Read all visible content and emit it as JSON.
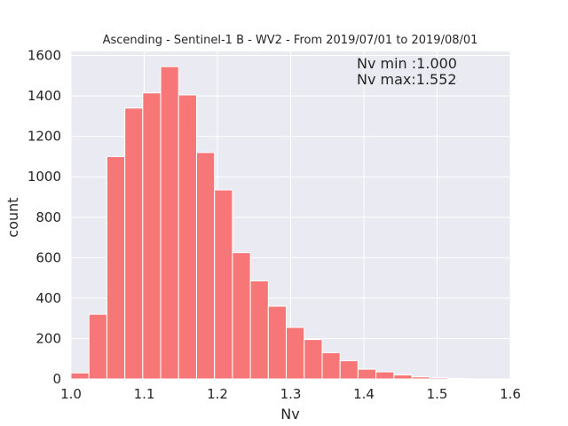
{
  "chart_data": {
    "type": "bar",
    "title": "Ascending - Sentinel-1 B - WV2 - From 2019/07/01 to 2019/08/01",
    "xlabel": "Nv",
    "ylabel": "count",
    "xlim": [
      1.0,
      1.6
    ],
    "ylim": [
      0,
      1620
    ],
    "xticks": [
      1.0,
      1.1,
      1.2,
      1.3,
      1.4,
      1.5,
      1.6
    ],
    "xtick_labels": [
      "1.0",
      "1.1",
      "1.2",
      "1.3",
      "1.4",
      "1.5",
      "1.6"
    ],
    "yticks": [
      0,
      200,
      400,
      600,
      800,
      1000,
      1200,
      1400,
      1600
    ],
    "ytick_labels": [
      "0",
      "200",
      "400",
      "600",
      "800",
      "1000",
      "1200",
      "1400",
      "1600"
    ],
    "grid": true,
    "bar_color": "#f77779",
    "background_color": "#eaeaf2",
    "bins": [
      {
        "x0": 1.0,
        "x1": 1.0245,
        "count": 30
      },
      {
        "x0": 1.0245,
        "x1": 1.049,
        "count": 320
      },
      {
        "x0": 1.049,
        "x1": 1.0735,
        "count": 1100
      },
      {
        "x0": 1.0735,
        "x1": 1.098,
        "count": 1340
      },
      {
        "x0": 1.098,
        "x1": 1.1225,
        "count": 1415
      },
      {
        "x0": 1.1225,
        "x1": 1.147,
        "count": 1545
      },
      {
        "x0": 1.147,
        "x1": 1.1715,
        "count": 1405
      },
      {
        "x0": 1.1715,
        "x1": 1.196,
        "count": 1120
      },
      {
        "x0": 1.196,
        "x1": 1.2205,
        "count": 935
      },
      {
        "x0": 1.2205,
        "x1": 1.245,
        "count": 625
      },
      {
        "x0": 1.245,
        "x1": 1.2695,
        "count": 485
      },
      {
        "x0": 1.2695,
        "x1": 1.294,
        "count": 360
      },
      {
        "x0": 1.294,
        "x1": 1.3185,
        "count": 255
      },
      {
        "x0": 1.3185,
        "x1": 1.343,
        "count": 195
      },
      {
        "x0": 1.343,
        "x1": 1.3675,
        "count": 130
      },
      {
        "x0": 1.3675,
        "x1": 1.392,
        "count": 90
      },
      {
        "x0": 1.392,
        "x1": 1.4165,
        "count": 48
      },
      {
        "x0": 1.4165,
        "x1": 1.441,
        "count": 35
      },
      {
        "x0": 1.441,
        "x1": 1.4655,
        "count": 20
      },
      {
        "x0": 1.4655,
        "x1": 1.49,
        "count": 10
      },
      {
        "x0": 1.49,
        "x1": 1.5145,
        "count": 6
      },
      {
        "x0": 1.5145,
        "x1": 1.539,
        "count": 3
      },
      {
        "x0": 1.539,
        "x1": 1.552,
        "count": 1
      }
    ],
    "annotations": [
      "Nv min :1.000",
      "Nv max:1.552"
    ]
  }
}
